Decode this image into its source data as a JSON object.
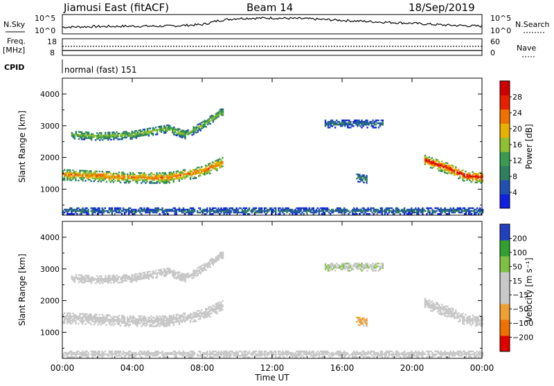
{
  "header": {
    "radar": "Jiamusi East (fitACF)",
    "beam": "Beam 14",
    "date": "18/Sep/2019"
  },
  "noise_panel": {
    "left_label": "N.Sky",
    "right_label": "N.Search",
    "ticks_left": [
      "10^5",
      "10^0"
    ],
    "ticks_right": [
      "10^5",
      "10^0"
    ]
  },
  "freq_panel": {
    "left_label_1": "Freq.",
    "left_label_2": "[MHz]",
    "right_label": "Nave",
    "ticks_left": [
      "18",
      "8"
    ],
    "ticks_right": [
      "60",
      "0"
    ]
  },
  "cpid": {
    "label": "CPID",
    "mode": "normal (fast) 151"
  },
  "x_axis": {
    "label": "Time UT",
    "ticks": [
      "00:00",
      "04:00",
      "08:00",
      "12:00",
      "16:00",
      "20:00",
      "00:00"
    ]
  },
  "panels": {
    "power": {
      "ylabel": "Slant Range [km]",
      "yticks": [
        "4000",
        "3000",
        "2000",
        "1000"
      ],
      "cbar_label": "Power [dB]",
      "cbar_ticks": [
        "28",
        "24",
        "20",
        "16",
        "12",
        "8",
        "4"
      ]
    },
    "velocity": {
      "ylabel": "Slant Range [km]",
      "yticks": [
        "4000",
        "3000",
        "2000",
        "1000"
      ],
      "cbar_label": "Velocity [m s⁻¹]",
      "cbar_ticks": [
        "200",
        "100",
        "50",
        "15",
        "-15",
        "-50",
        "-100",
        "-200"
      ]
    }
  },
  "chart_data": {
    "type": "heatmap",
    "x_unit": "hours UT",
    "xlim": [
      0,
      24
    ],
    "ylim_km": [
      180,
      4500
    ],
    "power_scale": {
      "range_db": [
        0,
        32
      ],
      "colors": [
        "#1020e0",
        "#2050b0",
        "#2e7f5f",
        "#3a9a50",
        "#90c030",
        "#e8b000",
        "#f07000",
        "#e82000",
        "#d00000"
      ]
    },
    "velocity_scale": {
      "range_ms": [
        -250,
        250
      ],
      "colors": [
        "#e00000",
        "#f07000",
        "#f0a030",
        "#c8c8c8",
        "#c8c8c8",
        "#80c040",
        "#30a030",
        "#2040c0"
      ]
    },
    "noise_sky_trend": [
      [
        0,
        0.35
      ],
      [
        2,
        0.38
      ],
      [
        4,
        0.4
      ],
      [
        6,
        0.4
      ],
      [
        8,
        0.48
      ],
      [
        9,
        0.7
      ],
      [
        10,
        0.8
      ],
      [
        12,
        0.82
      ],
      [
        14,
        0.78
      ],
      [
        16,
        0.7
      ],
      [
        18,
        0.62
      ],
      [
        20,
        0.55
      ],
      [
        22,
        0.45
      ],
      [
        24,
        0.4
      ]
    ],
    "scatter_regions": [
      {
        "name": "band_main",
        "t0": 0.0,
        "t1": 9.2,
        "r_center": [
          [
            0,
            1450
          ],
          [
            2,
            1400
          ],
          [
            4,
            1350
          ],
          [
            6,
            1350
          ],
          [
            8,
            1550
          ],
          [
            9.2,
            1850
          ]
        ],
        "width_km": 350,
        "power_db": 18,
        "velocity_ms": 0
      },
      {
        "name": "far_arc",
        "t0": 0.5,
        "t1": 9.2,
        "r_center": [
          [
            0.5,
            2700
          ],
          [
            2,
            2650
          ],
          [
            4,
            2700
          ],
          [
            6,
            2900
          ],
          [
            7,
            2700
          ],
          [
            8,
            3000
          ],
          [
            9,
            3400
          ]
        ],
        "width_km": 250,
        "power_db": 12,
        "velocity_ms": 0
      },
      {
        "name": "late_band",
        "t0": 20.7,
        "t1": 24.0,
        "r_center": [
          [
            20.7,
            1900
          ],
          [
            22,
            1650
          ],
          [
            23,
            1400
          ],
          [
            24,
            1350
          ]
        ],
        "width_km": 350,
        "power_db": 22,
        "velocity_ms": 0
      },
      {
        "name": "afternoon_patch",
        "t0": 16.8,
        "t1": 17.4,
        "r_center": [
          [
            16.8,
            1350
          ],
          [
            17.4,
            1300
          ]
        ],
        "width_km": 250,
        "power_db": 8,
        "velocity_ms": -60
      },
      {
        "name": "night_far",
        "t0": 15.0,
        "t1": 18.3,
        "r_center": [
          [
            15,
            3050
          ],
          [
            18.3,
            3050
          ]
        ],
        "width_km": 250,
        "power_db": 6,
        "velocity_ms": 10
      },
      {
        "name": "ground_echo",
        "t0": 0.0,
        "t1": 24.0,
        "r_center": [
          [
            0,
            300
          ],
          [
            24,
            300
          ]
        ],
        "width_km": 200,
        "power_db": 6,
        "velocity_ms": -30
      }
    ]
  }
}
